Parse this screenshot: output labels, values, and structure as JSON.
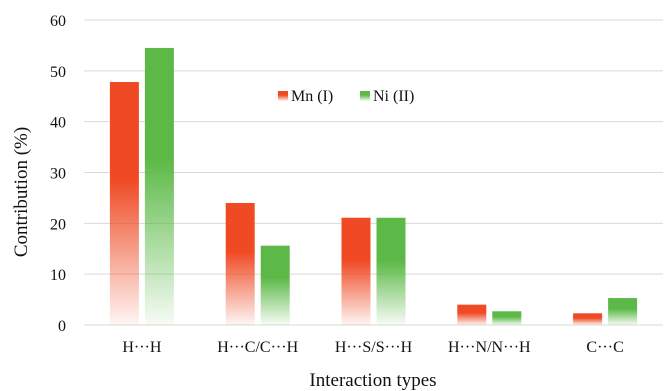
{
  "chart_data": {
    "type": "bar",
    "title": "",
    "xlabel": "Interaction types",
    "ylabel": "Contribution (%)",
    "ylim": [
      0,
      60
    ],
    "yticks": [
      0,
      10,
      20,
      30,
      40,
      50,
      60
    ],
    "grid": true,
    "legend_position": "top-center",
    "categories": [
      "H···H",
      "H···C/C···H",
      "H···S/S···H",
      "H···N/N···H",
      "C···C"
    ],
    "series": [
      {
        "name": "Mn (I)",
        "values": [
          47.8,
          24.0,
          21.1,
          4.0,
          2.3
        ],
        "color": "#ef4a24"
      },
      {
        "name": "Ni (II)",
        "values": [
          54.5,
          15.6,
          21.1,
          2.7,
          5.3
        ],
        "color": "#5cb947"
      }
    ]
  }
}
